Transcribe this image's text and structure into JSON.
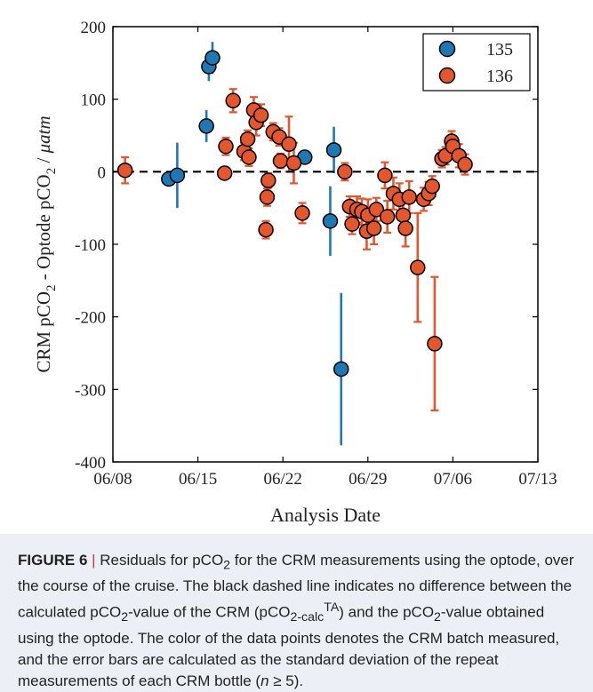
{
  "chart_data": {
    "type": "scatter",
    "xlabel": "Analysis Date",
    "ylabel": {
      "pre": "CRM pCO",
      "sub1": "2",
      "mid": " - Optode pCO",
      "sub2": "2",
      "post": " / ",
      "unit": "μatm"
    },
    "xlim": [
      0,
      35
    ],
    "x_ticks": [
      0,
      7,
      14,
      21,
      28,
      35
    ],
    "x_tick_labels": [
      "06/08",
      "06/15",
      "06/22",
      "06/29",
      "07/06",
      "07/13"
    ],
    "ylim": [
      -400,
      200
    ],
    "y_ticks": [
      -400,
      -300,
      -200,
      -100,
      0,
      100,
      200
    ],
    "y_tick_labels": [
      "-400",
      "-300",
      "-200",
      "-100",
      "0",
      "100",
      "200"
    ],
    "reference_line": {
      "y": 0,
      "style": "dashed",
      "color": "#000000"
    },
    "legend": {
      "position": "top-right"
    },
    "series": [
      {
        "name": "135",
        "color": "#1f77b4",
        "error_color": "#1f77b4",
        "points": [
          {
            "x": 4.6,
            "y": -10,
            "err": 8
          },
          {
            "x": 5.3,
            "y": -5,
            "err": 45
          },
          {
            "x": 7.7,
            "y": 63,
            "err": 22
          },
          {
            "x": 7.9,
            "y": 145,
            "err": 20
          },
          {
            "x": 8.2,
            "y": 157,
            "err": 22
          },
          {
            "x": 15.8,
            "y": 20,
            "err": 6
          },
          {
            "x": 17.9,
            "y": -68,
            "err": 48
          },
          {
            "x": 18.2,
            "y": 30,
            "err": 32
          },
          {
            "x": 18.8,
            "y": -272,
            "err": 105
          }
        ]
      },
      {
        "name": "136",
        "color": "#e4572e",
        "error_color": "#e4572e",
        "points": [
          {
            "x": 1.0,
            "y": 2,
            "err": 18
          },
          {
            "x": 9.2,
            "y": -2,
            "err": 8
          },
          {
            "x": 9.3,
            "y": 35,
            "err": 12
          },
          {
            "x": 9.9,
            "y": 98,
            "err": 16
          },
          {
            "x": 10.8,
            "y": 28,
            "err": 12
          },
          {
            "x": 11.1,
            "y": 45,
            "err": 12
          },
          {
            "x": 11.2,
            "y": 20,
            "err": 12
          },
          {
            "x": 11.6,
            "y": 85,
            "err": 18
          },
          {
            "x": 11.8,
            "y": 68,
            "err": 18
          },
          {
            "x": 12.2,
            "y": 78,
            "err": 15
          },
          {
            "x": 12.6,
            "y": -80,
            "err": 12
          },
          {
            "x": 12.7,
            "y": -35,
            "err": 12
          },
          {
            "x": 12.8,
            "y": -12,
            "err": 10
          },
          {
            "x": 13.2,
            "y": 55,
            "err": 12
          },
          {
            "x": 13.7,
            "y": 48,
            "err": 12
          },
          {
            "x": 13.8,
            "y": 15,
            "err": 10
          },
          {
            "x": 14.5,
            "y": 38,
            "err": 38
          },
          {
            "x": 14.9,
            "y": 12,
            "err": 28
          },
          {
            "x": 15.6,
            "y": -57,
            "err": 14
          },
          {
            "x": 19.1,
            "y": 0,
            "err": 12
          },
          {
            "x": 19.5,
            "y": -48,
            "err": 14
          },
          {
            "x": 19.7,
            "y": -72,
            "err": 14
          },
          {
            "x": 20.1,
            "y": -52,
            "err": 18
          },
          {
            "x": 20.5,
            "y": -55,
            "err": 18
          },
          {
            "x": 20.9,
            "y": -82,
            "err": 25
          },
          {
            "x": 21.0,
            "y": -60,
            "err": 22
          },
          {
            "x": 21.5,
            "y": -78,
            "err": 22
          },
          {
            "x": 21.7,
            "y": -52,
            "err": 16
          },
          {
            "x": 22.4,
            "y": -5,
            "err": 18
          },
          {
            "x": 22.6,
            "y": -62,
            "err": 22
          },
          {
            "x": 23.1,
            "y": -30,
            "err": 22
          },
          {
            "x": 23.6,
            "y": -38,
            "err": 22
          },
          {
            "x": 23.9,
            "y": -60,
            "err": 22
          },
          {
            "x": 24.1,
            "y": -78,
            "err": 25
          },
          {
            "x": 24.4,
            "y": -35,
            "err": 22
          },
          {
            "x": 25.1,
            "y": -132,
            "err": 75
          },
          {
            "x": 25.6,
            "y": -38,
            "err": 16
          },
          {
            "x": 26.0,
            "y": -30,
            "err": 16
          },
          {
            "x": 26.3,
            "y": -20,
            "err": 14
          },
          {
            "x": 26.5,
            "y": -237,
            "err": 92
          },
          {
            "x": 27.1,
            "y": 18,
            "err": 12
          },
          {
            "x": 27.4,
            "y": 22,
            "err": 12
          },
          {
            "x": 27.9,
            "y": 42,
            "err": 14
          },
          {
            "x": 28.0,
            "y": 35,
            "err": 14
          },
          {
            "x": 28.5,
            "y": 22,
            "err": 16
          },
          {
            "x": 29.0,
            "y": 10,
            "err": 14
          }
        ]
      }
    ]
  },
  "caption": {
    "label": "FIGURE 6",
    "sep": " | ",
    "t1": "Residuals for pCO",
    "s1": "2",
    "t2": " for the CRM measurements using the optode, over the course of the cruise. The black dashed line indicates no difference between the calculated pCO",
    "s2": "2",
    "t3": "-value of the CRM (pCO",
    "s3": "2-calc",
    "sup3": "TA",
    "t4": ") and the pCO",
    "s4": "2",
    "t5": "-value obtained using the optode. The color of the data points denotes the CRM batch measured, and the error bars are calculated as the standard deviation of the repeat measurements of each CRM bottle (",
    "n": "n",
    "t6": " ≥ 5)."
  }
}
